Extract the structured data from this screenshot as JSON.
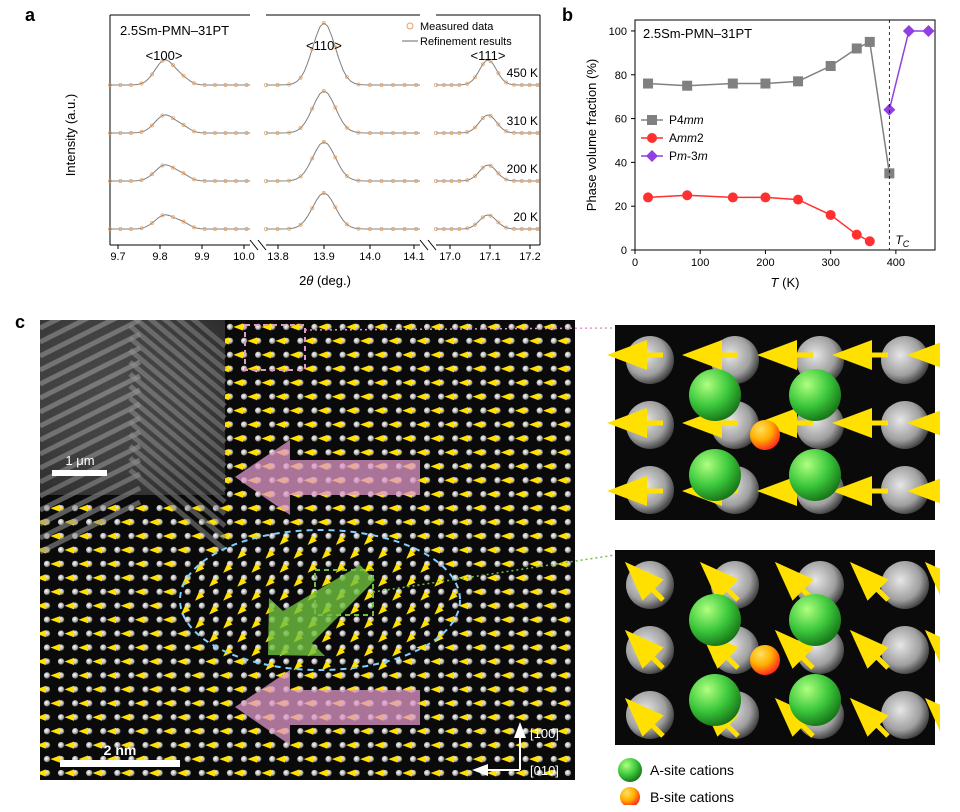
{
  "sample_name": "2.5Sm-PMN–31PT",
  "panel_a": {
    "label": "a",
    "type": "line",
    "ylabel": "Intensity (a.u.)",
    "xlabel": "2θ (deg.)",
    "legend": {
      "measured": "Measured data",
      "refinement": "Refinement results"
    },
    "measured_marker_color": "#e8a060",
    "refinement_line_color": "#808080",
    "peak_labels": [
      "<100>",
      "<110>",
      "<111>"
    ],
    "temperatures": [
      "450 K",
      "310 K",
      "200 K",
      "20 K"
    ],
    "segments": [
      {
        "ticks": [
          9.7,
          9.8,
          9.9,
          10.0
        ]
      },
      {
        "ticks": [
          13.8,
          13.9,
          14.0,
          14.1
        ]
      },
      {
        "ticks": [
          17.0,
          17.1,
          17.2
        ]
      }
    ],
    "background_color": "#ffffff",
    "axis_color": "#000000",
    "font_size_labels": 13,
    "font_size_ticks": 11
  },
  "panel_b": {
    "label": "b",
    "type": "line-scatter",
    "ylabel": "Phase volume fraction (%)",
    "xlabel": "T (K)",
    "xlim": [
      0,
      460
    ],
    "ylim": [
      0,
      105
    ],
    "xticks": [
      0,
      100,
      200,
      300,
      400
    ],
    "yticks": [
      0,
      20,
      40,
      60,
      80,
      100
    ],
    "tc_line_x": 390,
    "tc_label": "T_C",
    "series": {
      "P4mm": {
        "label": "P4mm",
        "color": "#808080",
        "marker": "square",
        "x": [
          20,
          80,
          150,
          200,
          250,
          300,
          340,
          360,
          390
        ],
        "y": [
          76,
          75,
          76,
          76,
          77,
          84,
          92,
          95,
          35
        ]
      },
      "Amm2": {
        "label": "Amm2",
        "color": "#ff3030",
        "marker": "circle",
        "x": [
          20,
          80,
          150,
          200,
          250,
          300,
          340,
          360
        ],
        "y": [
          24,
          25,
          24,
          24,
          23,
          16,
          7,
          4
        ]
      },
      "Pm-3m": {
        "label": "Pm-3m",
        "color": "#9040e0",
        "marker": "diamond",
        "x": [
          390,
          420,
          450
        ],
        "y": [
          64,
          100,
          100
        ]
      }
    },
    "background_color": "#ffffff",
    "axis_color": "#000000",
    "marker_size": 7,
    "line_width": 1.5
  },
  "panel_c": {
    "label": "c",
    "scalebar_main": "2 nm",
    "scalebar_inset": "1 μm",
    "directions": {
      "vert": "[100]",
      "horz": "[010]"
    },
    "cation_legend": {
      "A": "A-site cations",
      "B": "B-site cations"
    },
    "A_color": "#3cc83c",
    "B_color_inner": "#ff3030",
    "B_color_outer": "#ffd000",
    "arrow_small_color": "#ffe000",
    "arrow_tetragonal_color": "#e098c8",
    "arrow_ortho_color": "#70c040",
    "ellipse_color": "#80d0ff",
    "dashed_box_pink": "#e098c8",
    "dashed_box_green": "#70c040",
    "stem_bg_color": "#0a0a0a",
    "atom_bright_color": "#f0f0f0"
  }
}
